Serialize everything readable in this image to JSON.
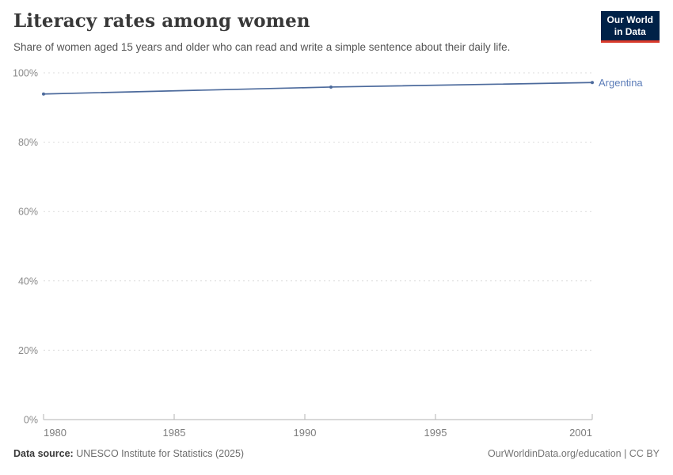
{
  "header": {
    "title": "Literacy rates among women",
    "subtitle": "Share of women aged 15 years and older who can read and write a simple sentence about their daily life."
  },
  "logo": {
    "line1": "Our World",
    "line2": "in Data",
    "bg_color": "#002147",
    "accent_color": "#D93A2B"
  },
  "chart_data": {
    "type": "line",
    "title": "Literacy rates among women",
    "xlabel": "",
    "ylabel": "",
    "x": [
      1980,
      1991,
      2001
    ],
    "series": [
      {
        "name": "Argentina",
        "color": "#4C6A9C",
        "label_color": "#5B7CB8",
        "values": [
          93.9,
          95.9,
          97.2
        ]
      }
    ],
    "xlim": [
      1980,
      2001
    ],
    "ylim": [
      0,
      100
    ],
    "xticks": [
      1980,
      1985,
      1990,
      1995,
      2001
    ],
    "yticks": [
      0,
      20,
      40,
      60,
      80,
      100
    ],
    "ytick_suffix": "%",
    "grid": "horizontal-dashed",
    "legend_position": "line-end-label"
  },
  "footer": {
    "source_label": "Data source:",
    "source_text": " UNESCO Institute for Statistics (2025)",
    "credit_text": "OurWorldinData.org/education | CC BY"
  }
}
